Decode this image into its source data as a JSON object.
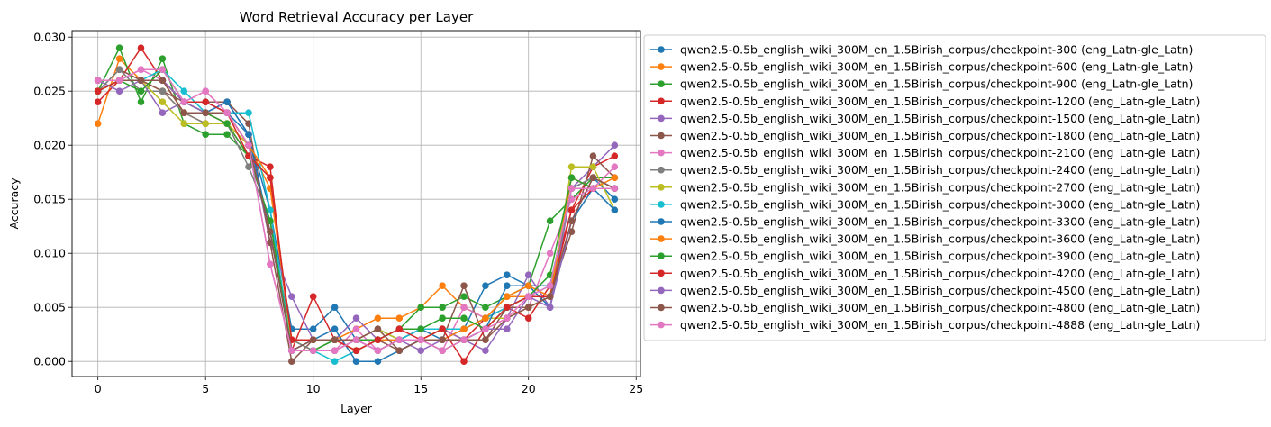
{
  "chart_data": {
    "type": "line",
    "title": "Word Retrieval Accuracy per Layer",
    "xlabel": "Layer",
    "ylabel": "Accuracy",
    "xlim": [
      -1.2,
      25.2
    ],
    "ylim": [
      -0.0014,
      0.0306
    ],
    "xticks": [
      0,
      5,
      10,
      15,
      20,
      25
    ],
    "xtick_labels": [
      "0",
      "5",
      "10",
      "15",
      "20",
      "25"
    ],
    "yticks": [
      0,
      0.005,
      0.01,
      0.015,
      0.02,
      0.025,
      0.03
    ],
    "ytick_labels": [
      "0.000",
      "0.005",
      "0.010",
      "0.015",
      "0.020",
      "0.025",
      "0.030"
    ],
    "grid": true,
    "legend_position": "outside-right",
    "marker": "circle",
    "x": [
      0,
      1,
      2,
      3,
      4,
      5,
      6,
      7,
      8,
      9,
      10,
      11,
      12,
      13,
      14,
      15,
      16,
      17,
      18,
      19,
      20,
      21,
      22,
      23,
      24
    ],
    "series": [
      {
        "name": "qwen2.5-0.5b_english_wiki_300M_en_1.5Birish_corpus/checkpoint-300 (eng_Latn-gle_Latn)",
        "color": "#1f77b4",
        "values": [
          0.025,
          0.026,
          0.026,
          0.026,
          0.024,
          0.024,
          0.023,
          0.021,
          0.014,
          0.003,
          0.003,
          0.005,
          0.002,
          0.003,
          0.002,
          0.003,
          0.002,
          0.003,
          0.007,
          0.008,
          0.007,
          0.007,
          0.016,
          0.017,
          0.015
        ]
      },
      {
        "name": "qwen2.5-0.5b_english_wiki_300M_en_1.5Birish_corpus/checkpoint-600 (eng_Latn-gle_Latn)",
        "color": "#ff7f0e",
        "values": [
          0.022,
          0.028,
          0.026,
          0.025,
          0.023,
          0.022,
          0.022,
          0.02,
          0.016,
          0.002,
          0.002,
          0.002,
          0.003,
          0.004,
          0.004,
          0.005,
          0.007,
          0.005,
          0.004,
          0.006,
          0.006,
          0.006,
          0.016,
          0.016,
          0.016
        ]
      },
      {
        "name": "qwen2.5-0.5b_english_wiki_300M_en_1.5Birish_corpus/checkpoint-900 (eng_Latn-gle_Latn)",
        "color": "#2ca02c",
        "values": [
          0.025,
          0.029,
          0.024,
          0.028,
          0.022,
          0.021,
          0.021,
          0.019,
          0.013,
          0.002,
          0.001,
          0.002,
          0.001,
          0.002,
          0.003,
          0.005,
          0.005,
          0.006,
          0.005,
          0.006,
          0.007,
          0.013,
          0.015,
          0.017,
          0.017
        ]
      },
      {
        "name": "qwen2.5-0.5b_english_wiki_300M_en_1.5Birish_corpus/checkpoint-1200 (eng_Latn-gle_Latn)",
        "color": "#d62728",
        "values": [
          0.024,
          0.026,
          0.029,
          0.026,
          0.023,
          0.023,
          0.022,
          0.019,
          0.018,
          0.001,
          0.006,
          0.002,
          0.001,
          0.002,
          0.002,
          0.002,
          0.003,
          0.002,
          0.004,
          0.005,
          0.004,
          0.007,
          0.014,
          0.018,
          0.019
        ]
      },
      {
        "name": "qwen2.5-0.5b_english_wiki_300M_en_1.5Birish_corpus/checkpoint-1500 (eng_Latn-gle_Latn)",
        "color": "#9467bd",
        "values": [
          0.026,
          0.025,
          0.026,
          0.023,
          0.024,
          0.023,
          0.024,
          0.021,
          0.011,
          0.006,
          0.002,
          0.002,
          0.004,
          0.002,
          0.002,
          0.003,
          0.003,
          0.002,
          0.001,
          0.004,
          0.008,
          0.005,
          0.016,
          0.018,
          0.02
        ]
      },
      {
        "name": "qwen2.5-0.5b_english_wiki_300M_en_1.5Birish_corpus/checkpoint-1800 (eng_Latn-gle_Latn)",
        "color": "#8c564b",
        "values": [
          0.025,
          0.027,
          0.026,
          0.025,
          0.024,
          0.024,
          0.024,
          0.022,
          0.011,
          0.0,
          0.002,
          0.002,
          0.002,
          0.002,
          0.001,
          0.002,
          0.002,
          0.007,
          0.002,
          0.005,
          0.005,
          0.006,
          0.012,
          0.019,
          0.017
        ]
      },
      {
        "name": "qwen2.5-0.5b_english_wiki_300M_en_1.5Birish_corpus/checkpoint-2100 (eng_Latn-gle_Latn)",
        "color": "#e377c2",
        "values": [
          0.026,
          0.026,
          0.027,
          0.026,
          0.024,
          0.025,
          0.023,
          0.02,
          0.009,
          0.001,
          0.001,
          0.001,
          0.003,
          0.001,
          0.002,
          0.002,
          0.001,
          0.005,
          0.004,
          0.004,
          0.005,
          0.01,
          0.015,
          0.016,
          0.018
        ]
      },
      {
        "name": "qwen2.5-0.5b_english_wiki_300M_en_1.5Birish_corpus/checkpoint-2400 (eng_Latn-gle_Latn)",
        "color": "#7f7f7f",
        "values": [
          0.025,
          0.027,
          0.025,
          0.025,
          0.023,
          0.022,
          0.022,
          0.018,
          0.013,
          0.002,
          0.001,
          0.001,
          0.002,
          0.001,
          0.002,
          0.002,
          0.001,
          0.002,
          0.003,
          0.005,
          0.006,
          0.006,
          0.016,
          0.017,
          0.016
        ]
      },
      {
        "name": "qwen2.5-0.5b_english_wiki_300M_en_1.5Birish_corpus/checkpoint-2700 (eng_Latn-gle_Latn)",
        "color": "#bcbd22",
        "values": [
          0.025,
          0.026,
          0.026,
          0.024,
          0.022,
          0.022,
          0.022,
          0.02,
          0.012,
          0.002,
          0.002,
          0.002,
          0.002,
          0.003,
          0.002,
          0.002,
          0.003,
          0.003,
          0.004,
          0.004,
          0.005,
          0.006,
          0.018,
          0.018,
          0.014
        ]
      },
      {
        "name": "qwen2.5-0.5b_english_wiki_300M_en_1.5Birish_corpus/checkpoint-3000 (eng_Latn-gle_Latn)",
        "color": "#17becf",
        "values": [
          0.026,
          0.026,
          0.026,
          0.027,
          0.025,
          0.023,
          0.023,
          0.023,
          0.014,
          0.001,
          0.001,
          0.0,
          0.001,
          0.002,
          0.002,
          0.003,
          0.003,
          0.003,
          0.004,
          0.005,
          0.006,
          0.007,
          0.016,
          0.016,
          0.016
        ]
      },
      {
        "name": "qwen2.5-0.5b_english_wiki_300M_en_1.5Birish_corpus/checkpoint-3300 (eng_Latn-gle_Latn)",
        "color": "#1f77b4",
        "values": [
          0.025,
          0.026,
          0.026,
          0.026,
          0.024,
          0.023,
          0.024,
          0.021,
          0.012,
          0.001,
          0.002,
          0.003,
          0.0,
          0.0,
          0.001,
          0.002,
          0.002,
          0.002,
          0.003,
          0.007,
          0.007,
          0.005,
          0.013,
          0.016,
          0.014
        ]
      },
      {
        "name": "qwen2.5-0.5b_english_wiki_300M_en_1.5Birish_corpus/checkpoint-3600 (eng_Latn-gle_Latn)",
        "color": "#ff7f0e",
        "values": [
          0.025,
          0.026,
          0.026,
          0.026,
          0.023,
          0.023,
          0.023,
          0.02,
          0.017,
          0.002,
          0.002,
          0.002,
          0.001,
          0.002,
          0.002,
          0.002,
          0.002,
          0.003,
          0.004,
          0.006,
          0.007,
          0.006,
          0.017,
          0.016,
          0.017
        ]
      },
      {
        "name": "qwen2.5-0.5b_english_wiki_300M_en_1.5Birish_corpus/checkpoint-3900 (eng_Latn-gle_Latn)",
        "color": "#2ca02c",
        "values": [
          0.025,
          0.026,
          0.025,
          0.027,
          0.024,
          0.023,
          0.022,
          0.019,
          0.013,
          0.001,
          0.001,
          0.002,
          0.002,
          0.002,
          0.003,
          0.003,
          0.004,
          0.004,
          0.003,
          0.005,
          0.006,
          0.008,
          0.017,
          0.016,
          0.016
        ]
      },
      {
        "name": "qwen2.5-0.5b_english_wiki_300M_en_1.5Birish_corpus/checkpoint-4200 (eng_Latn-gle_Latn)",
        "color": "#d62728",
        "values": [
          0.025,
          0.026,
          0.026,
          0.026,
          0.024,
          0.024,
          0.023,
          0.019,
          0.017,
          0.002,
          0.002,
          0.002,
          0.001,
          0.002,
          0.003,
          0.002,
          0.003,
          0.0,
          0.003,
          0.005,
          0.006,
          0.006,
          0.014,
          0.016,
          0.016
        ]
      },
      {
        "name": "qwen2.5-0.5b_english_wiki_300M_en_1.5Birish_corpus/checkpoint-4500 (eng_Latn-gle_Latn)",
        "color": "#9467bd",
        "values": [
          0.026,
          0.026,
          0.026,
          0.026,
          0.024,
          0.023,
          0.023,
          0.02,
          0.012,
          0.001,
          0.001,
          0.001,
          0.002,
          0.001,
          0.002,
          0.001,
          0.002,
          0.002,
          0.003,
          0.003,
          0.006,
          0.005,
          0.013,
          0.017,
          0.016
        ]
      },
      {
        "name": "qwen2.5-0.5b_english_wiki_300M_en_1.5Birish_corpus/checkpoint-4800 (eng_Latn-gle_Latn)",
        "color": "#8c564b",
        "values": [
          0.026,
          0.026,
          0.026,
          0.026,
          0.023,
          0.023,
          0.023,
          0.02,
          0.012,
          0.001,
          0.002,
          0.002,
          0.002,
          0.003,
          0.001,
          0.002,
          0.002,
          0.002,
          0.002,
          0.004,
          0.005,
          0.006,
          0.013,
          0.017,
          0.016
        ]
      },
      {
        "name": "qwen2.5-0.5b_english_wiki_300M_en_1.5Birish_corpus/checkpoint-4888 (eng_Latn-gle_Latn)",
        "color": "#e377c2",
        "values": [
          0.026,
          0.026,
          0.027,
          0.027,
          0.024,
          0.025,
          0.023,
          0.02,
          0.009,
          0.001,
          0.001,
          0.001,
          0.002,
          0.001,
          0.002,
          0.002,
          0.001,
          0.002,
          0.003,
          0.004,
          0.006,
          0.007,
          0.016,
          0.016,
          0.016
        ]
      }
    ]
  }
}
